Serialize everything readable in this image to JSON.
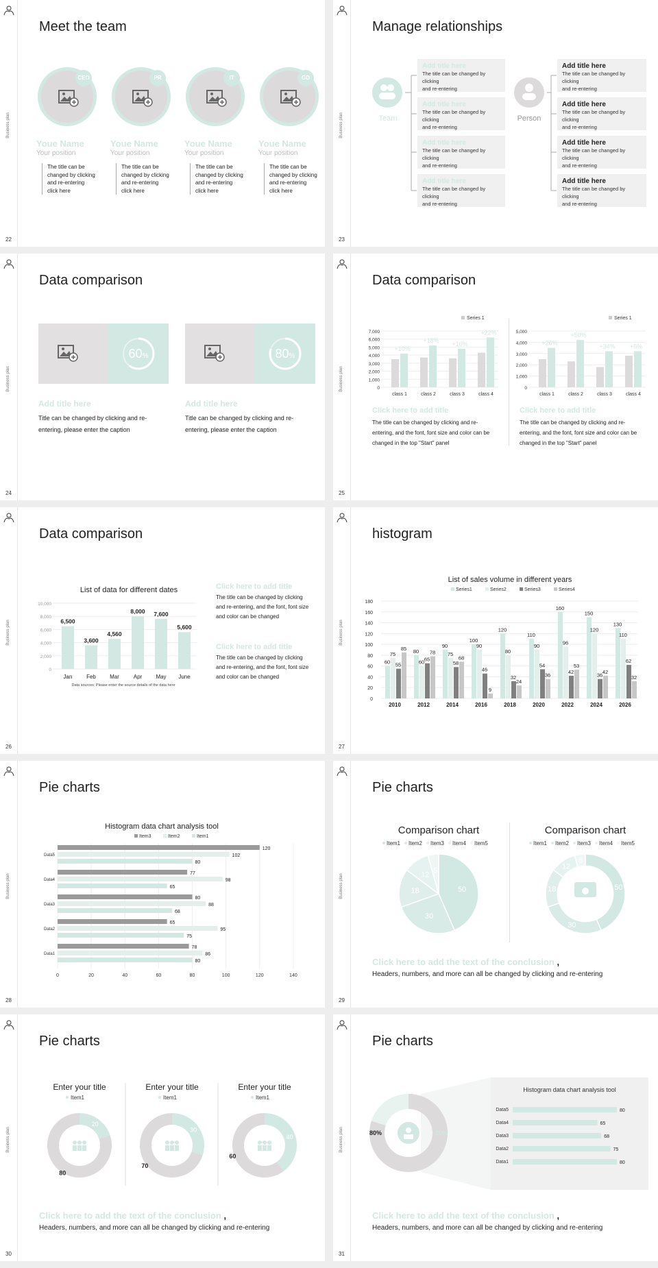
{
  "side_label": "Business plan",
  "colors": {
    "mint": "#d2e8e2",
    "gray": "#dcdada",
    "dark": "#808080"
  },
  "s22": {
    "num": "22",
    "title": "Meet the team",
    "members": [
      {
        "badge": "CEO",
        "name": "Youe Name",
        "pos": "Your position",
        "desc": [
          "The title can be",
          "changed by clicking",
          "and re-entering",
          "click here"
        ]
      },
      {
        "badge": "PR",
        "name": "Youe Name",
        "pos": "Your position",
        "desc": [
          "The title can be",
          "changed by clicking",
          "and re-entering",
          "click here"
        ]
      },
      {
        "badge": "IT",
        "name": "Youe Name",
        "pos": "Your position",
        "desc": [
          "The title can be",
          "changed by clicking",
          "and re-entering",
          "click here"
        ]
      },
      {
        "badge": "GD",
        "name": "Youe Name",
        "pos": "Your position",
        "desc": [
          "The title can be",
          "changed by clicking",
          "and re-entering",
          "click here"
        ]
      }
    ]
  },
  "s23": {
    "num": "23",
    "title": "Manage relationships",
    "team": "Team",
    "person": "Person",
    "left": [
      {
        "t": "Add title here",
        "d1": "The title can be changed by clicking",
        "d2": "and re-entering"
      },
      {
        "t": "Add title here",
        "d1": "The title can be changed by clicking",
        "d2": "and re-entering"
      },
      {
        "t": "Add title here",
        "d1": "The title can be changed by clicking",
        "d2": "and re-entering"
      },
      {
        "t": "Add title here",
        "d1": "The title can be changed by clicking",
        "d2": "and re-entering"
      }
    ],
    "right": [
      {
        "t": "Add title here",
        "d1": "The title can be changed by clicking",
        "d2": "and re-entering"
      },
      {
        "t": "Add title here",
        "d1": "The title can be changed by clicking",
        "d2": "and re-entering"
      },
      {
        "t": "Add title here",
        "d1": "The title can be changed by clicking",
        "d2": "and re-entering"
      },
      {
        "t": "Add title here",
        "d1": "The title can be changed by clicking",
        "d2": "and re-entering"
      }
    ]
  },
  "s24": {
    "num": "24",
    "title": "Data comparison",
    "cards": [
      {
        "pct": "60",
        "unit": "%",
        "value": 60,
        "head": "Add title here",
        "l1": "Title can be changed by clicking and re-",
        "l2": "entering, please enter the caption"
      },
      {
        "pct": "80",
        "unit": "%",
        "value": 80,
        "head": "Add title here",
        "l1": "Title can be changed by clicking and re-",
        "l2": "entering, please enter the caption"
      }
    ]
  },
  "s25": {
    "num": "25",
    "title": "Data comparison",
    "legend": "Series 1",
    "charts": [
      {
        "ticks": [
          "7,000",
          "6,000",
          "5,000",
          "4,000",
          "3,000",
          "2,000",
          "1,000",
          "0"
        ],
        "ymax": 7000,
        "cats": [
          "class 1",
          "class 2",
          "class 3",
          "class 4"
        ],
        "gray": [
          3500,
          3700,
          3600,
          4300
        ],
        "mint": [
          4200,
          5200,
          4800,
          6200
        ],
        "pct": [
          "+10%",
          "+18%",
          "+16%",
          "+22%"
        ]
      },
      {
        "ticks": [
          "5,000",
          "4,000",
          "3,000",
          "2,000",
          "1,000",
          "0"
        ],
        "ymax": 5000,
        "cats": [
          "class 1",
          "class 2",
          "class 3",
          "class 4"
        ],
        "gray": [
          2500,
          2300,
          1800,
          2800
        ],
        "mint": [
          3500,
          4200,
          3200,
          3200
        ],
        "pct": [
          "+26%",
          "+50%",
          "+34%",
          "+5%"
        ]
      }
    ],
    "texts": [
      {
        "head": "Click here to add title",
        "l1": "The title can be changed by clicking and re-",
        "l2": "entering, and the font, font size and color can be",
        "l3": "changed in the top \"Start\" panel"
      },
      {
        "head": "Click here to add title",
        "l1": "The title can be changed by clicking and re-",
        "l2": "entering, and the font, font size and color can be",
        "l3": "changed in the top \"Start\" panel"
      }
    ]
  },
  "s26": {
    "num": "26",
    "title": "Data comparison",
    "chart_data": {
      "type": "bar",
      "title": "List of data for different dates",
      "categories": [
        "Jan",
        "Feb",
        "Mar",
        "Apr",
        "May",
        "June"
      ],
      "values": [
        6500,
        3600,
        4560,
        8000,
        7600,
        5600
      ],
      "labels": [
        "6,500",
        "3,600",
        "4,560",
        "8,000",
        "7,600",
        "5,600"
      ],
      "yticks": [
        "10,000",
        "8,000",
        "6,000",
        "4,000",
        "2,000",
        "0"
      ],
      "ylim": [
        0,
        10000
      ],
      "note": "Data sources: Please enter the source details of the data here"
    },
    "blocks": [
      {
        "head": "Click here to add title",
        "l1": "The title can be changed by clicking",
        "l2": "and re-entering, and the font, font size",
        "l3": "and color can be changed"
      },
      {
        "head": "Click here to add title",
        "l1": "The title can be changed by clicking",
        "l2": "and re-entering, and the font, font size",
        "l3": "and color can be changed"
      }
    ]
  },
  "s27": {
    "num": "27",
    "title": "histogram",
    "chart_data": {
      "type": "bar",
      "title": "List of sales volume in different years",
      "legend": [
        "Series1",
        "Series2",
        "Series3",
        "Series4"
      ],
      "categories": [
        "2010",
        "2012",
        "2014",
        "2016",
        "2018",
        "2020",
        "2022",
        "2024",
        "2026"
      ],
      "series": [
        {
          "name": "Series1",
          "values": [
            60,
            80,
            90,
            100,
            120,
            110,
            160,
            150,
            130
          ]
        },
        {
          "name": "Series2",
          "values": [
            75,
            60,
            75,
            90,
            80,
            90,
            96,
            120,
            110
          ]
        },
        {
          "name": "Series3",
          "values": [
            55,
            65,
            58,
            46,
            32,
            54,
            42,
            36,
            62
          ]
        },
        {
          "name": "Series4",
          "values": [
            85,
            78,
            68,
            9,
            24,
            36,
            53,
            42,
            32
          ]
        }
      ],
      "yticks": [
        "180",
        "160",
        "140",
        "120",
        "100",
        "80",
        "60",
        "40",
        "20",
        "0"
      ],
      "ylim": [
        0,
        180
      ]
    }
  },
  "s28": {
    "num": "28",
    "title": "Pie charts",
    "chart_data": {
      "type": "bar",
      "title": "Histogram data chart analysis tool",
      "legend": [
        "Item3",
        "Item2",
        "Item1"
      ],
      "categories": [
        "Data5",
        "Data4",
        "Data3",
        "Data2",
        "Data1"
      ],
      "series": [
        {
          "name": "Item3",
          "values": [
            120,
            77,
            80,
            65,
            78
          ]
        },
        {
          "name": "Item2",
          "values": [
            102,
            98,
            88,
            95,
            86
          ]
        },
        {
          "name": "Item1",
          "values": [
            80,
            65,
            68,
            75,
            80
          ]
        }
      ],
      "xticks": [
        "0",
        "20",
        "40",
        "60",
        "80",
        "100",
        "120",
        "140"
      ],
      "xlim": [
        0,
        140
      ]
    }
  },
  "s29": {
    "num": "29",
    "title": "Pie charts",
    "charts": [
      {
        "title": "Comparison chart",
        "legend": [
          "Item1",
          "Item2",
          "Item3",
          "Item4",
          "Item5"
        ],
        "values": [
          50,
          30,
          18,
          12,
          5
        ],
        "labels": [
          "50",
          "30",
          "18",
          "12",
          "5"
        ]
      },
      {
        "title": "Comparison chart",
        "legend": [
          "Item1",
          "Item2",
          "Item3",
          "Item4",
          "Item5"
        ],
        "values": [
          50,
          30,
          18,
          12,
          5
        ],
        "labels": [
          "50",
          "30",
          "18",
          "12",
          "5"
        ]
      }
    ],
    "conclusion": "Click here to add the text of the conclusion",
    "comma": ",",
    "sub": "Headers, numbers, and more can all be changed by clicking and re-entering"
  },
  "s30": {
    "num": "30",
    "title": "Pie charts",
    "charts": [
      {
        "title": "Enter your title",
        "legend": "Item1",
        "mint": 20,
        "gray": 80
      },
      {
        "title": "Enter your title",
        "legend": "Item1",
        "mint": 30,
        "gray": 70
      },
      {
        "title": "Enter your title",
        "legend": "Item1",
        "mint": 40,
        "gray": 60
      }
    ],
    "conclusion": "Click here to add the text of the conclusion",
    "comma": ",",
    "sub": "Headers, numbers, and more can all be changed by clicking and re-entering"
  },
  "s31": {
    "num": "31",
    "title": "Pie charts",
    "donut": {
      "gray": "80%",
      "mint": "20%",
      "gray_value": 80,
      "mint_value": 20
    },
    "chart_data": {
      "type": "bar",
      "title": "Histogram data chart analysis tool",
      "categories": [
        "Data5",
        "Data4",
        "Data3",
        "Data2",
        "Data1"
      ],
      "values": [
        80,
        65,
        68,
        75,
        80
      ]
    },
    "conclusion": "Click here to add the text of the conclusion",
    "comma": ",",
    "sub": "Headers, numbers, and more can all be changed by clicking and re-entering"
  }
}
